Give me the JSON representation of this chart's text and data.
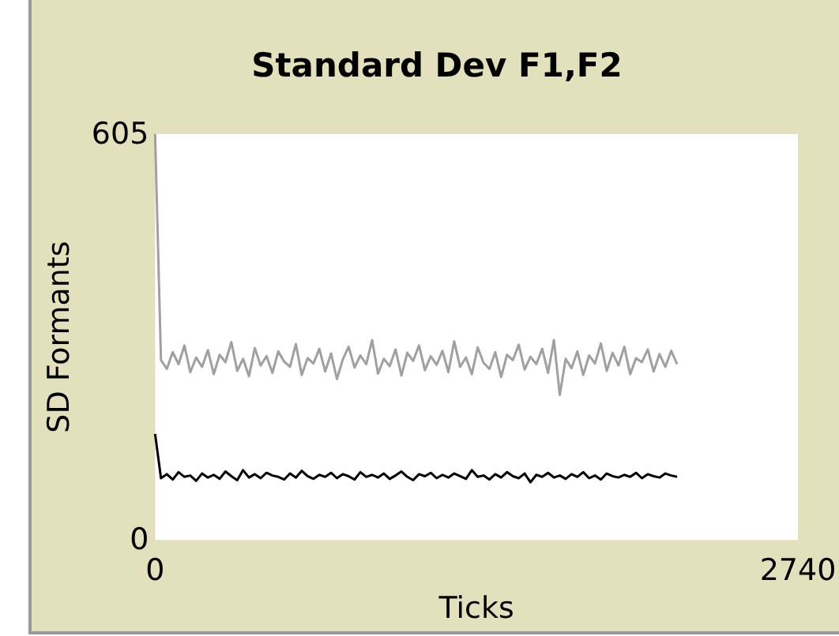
{
  "chart_data": {
    "type": "line",
    "title": "Standard Dev F1,F2",
    "xlabel": "Ticks",
    "ylabel": "SD Formants",
    "x": [
      0,
      25,
      50,
      75,
      100,
      125,
      150,
      175,
      200,
      225,
      250,
      275,
      300,
      325,
      350,
      375,
      400,
      425,
      450,
      475,
      500,
      525,
      550,
      575,
      600,
      625,
      650,
      675,
      700,
      725,
      750,
      775,
      800,
      825,
      850,
      875,
      900,
      925,
      950,
      975,
      1000,
      1025,
      1050,
      1075,
      1100,
      1125,
      1150,
      1175,
      1200,
      1225,
      1250,
      1275,
      1300,
      1325,
      1350,
      1375,
      1400,
      1425,
      1450,
      1475,
      1500,
      1525,
      1550,
      1575,
      1600,
      1625,
      1650,
      1675,
      1700,
      1725,
      1750,
      1775,
      1800,
      1825,
      1850,
      1875,
      1900,
      1925,
      1950,
      1975,
      2000,
      2025,
      2050,
      2075,
      2100,
      2125,
      2150,
      2175,
      2200,
      2225
    ],
    "series": [
      {
        "color": "#a0a0a0",
        "values": [
          605,
          268,
          255,
          280,
          262,
          290,
          250,
          272,
          258,
          283,
          247,
          276,
          265,
          295,
          252,
          270,
          244,
          286,
          260,
          274,
          249,
          281,
          266,
          258,
          292,
          246,
          271,
          263,
          285,
          251,
          278,
          240,
          269,
          288,
          257,
          275,
          262,
          298,
          248,
          270,
          259,
          284,
          245,
          279,
          267,
          290,
          253,
          274,
          261,
          282,
          250,
          296,
          258,
          272,
          247,
          287,
          264,
          255,
          280,
          243,
          276,
          268,
          291,
          254,
          273,
          262,
          285,
          249,
          298,
          216,
          270,
          256,
          281,
          246,
          275,
          263,
          293,
          252,
          279,
          260,
          288,
          247,
          271,
          265,
          284,
          251,
          277,
          258,
          282,
          262
        ]
      },
      {
        "color": "#000000",
        "values": [
          158,
          92,
          98,
          90,
          101,
          94,
          96,
          88,
          99,
          93,
          97,
          91,
          102,
          95,
          89,
          104,
          93,
          98,
          92,
          100,
          96,
          94,
          90,
          99,
          93,
          103,
          95,
          91,
          97,
          94,
          100,
          92,
          98,
          95,
          90,
          101,
          94,
          97,
          93,
          99,
          91,
          96,
          102,
          94,
          89,
          98,
          95,
          100,
          92,
          97,
          93,
          99,
          95,
          91,
          104,
          94,
          96,
          90,
          98,
          93,
          101,
          95,
          92,
          99,
          86,
          97,
          94,
          100,
          93,
          96,
          91,
          98,
          94,
          101,
          92,
          96,
          90,
          99,
          95,
          93,
          97,
          94,
          100,
          92,
          98,
          95,
          93,
          99,
          96,
          94
        ]
      }
    ],
    "xlim": [
      0,
      2740
    ],
    "xticks": [
      0,
      2740
    ],
    "ylim": [
      0,
      605
    ],
    "yticks": [
      0,
      605
    ],
    "grid": false,
    "marker": "none",
    "line_style": "solid"
  }
}
